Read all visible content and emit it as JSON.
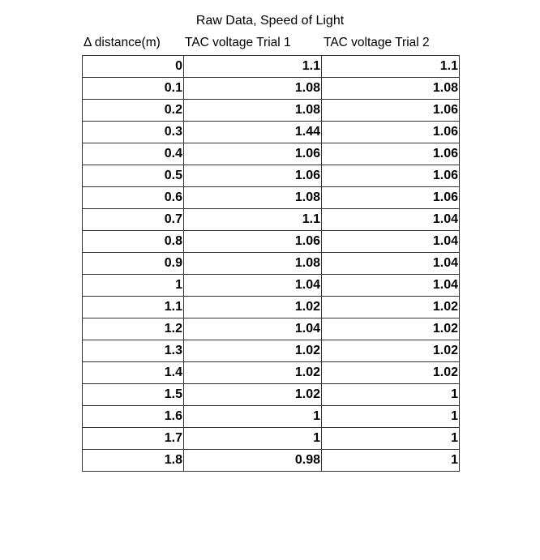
{
  "title": "Raw Data, Speed of Light",
  "headers": [
    "Δ distance(m)",
    "TAC voltage Trial 1",
    "TAC voltage Trial 2"
  ],
  "rows": [
    [
      "0",
      "1.1",
      "1.1"
    ],
    [
      "0.1",
      "1.08",
      "1.08"
    ],
    [
      "0.2",
      "1.08",
      "1.06"
    ],
    [
      "0.3",
      "1.44",
      "1.06"
    ],
    [
      "0.4",
      "1.06",
      "1.06"
    ],
    [
      "0.5",
      "1.06",
      "1.06"
    ],
    [
      "0.6",
      "1.08",
      "1.06"
    ],
    [
      "0.7",
      "1.1",
      "1.04"
    ],
    [
      "0.8",
      "1.06",
      "1.04"
    ],
    [
      "0.9",
      "1.08",
      "1.04"
    ],
    [
      "1",
      "1.04",
      "1.04"
    ],
    [
      "1.1",
      "1.02",
      "1.02"
    ],
    [
      "1.2",
      "1.04",
      "1.02"
    ],
    [
      "1.3",
      "1.02",
      "1.02"
    ],
    [
      "1.4",
      "1.02",
      "1.02"
    ],
    [
      "1.5",
      "1.02",
      "1"
    ],
    [
      "1.6",
      "1",
      "1"
    ],
    [
      "1.7",
      "1",
      "1"
    ],
    [
      "1.8",
      "0.98",
      "1"
    ]
  ]
}
